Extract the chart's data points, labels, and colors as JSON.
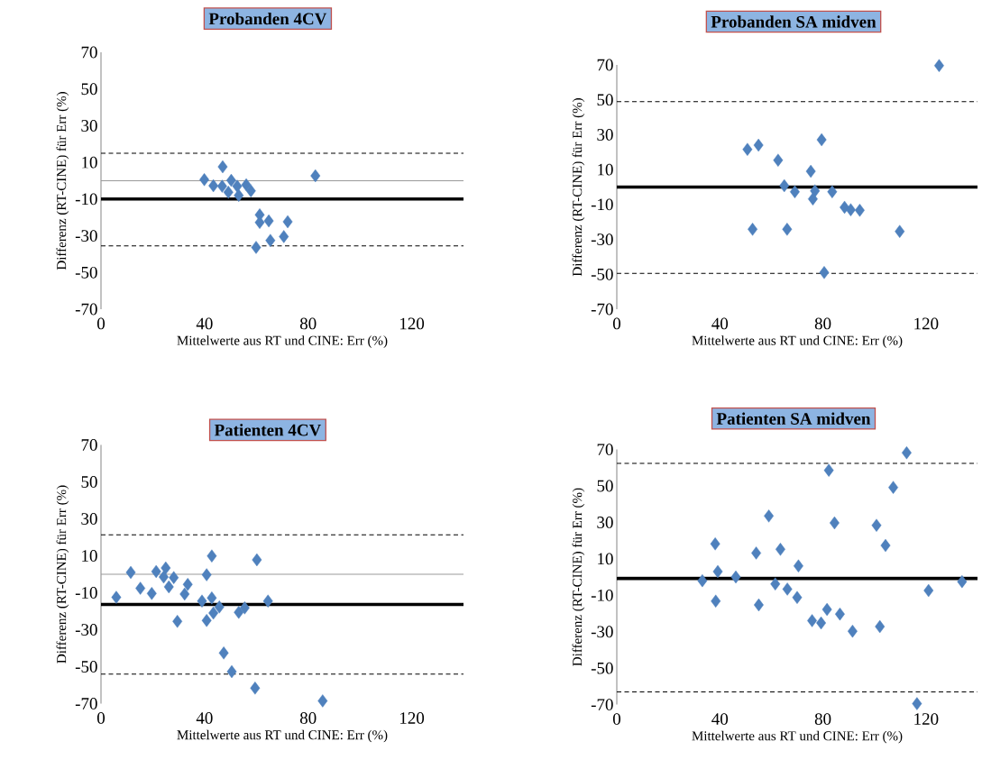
{
  "chart_data": [
    {
      "type": "scatter",
      "title": "Probanden 4CV",
      "xlabel": "Mittelwerte aus RT und CINE: Err (%)",
      "ylabel": "Differenz (RT-CINE) für Err (%)",
      "color": "#4f81bd",
      "marker": "diamond",
      "x": [
        39.9,
        47,
        43.4,
        46.8,
        50.3,
        52.6,
        53.2,
        56.1,
        57.9,
        49.2,
        82.8,
        61.3,
        61.3,
        64.8,
        72.1,
        70.6,
        65.4,
        59.9
      ],
      "values": [
        0.6,
        7.6,
        -2.7,
        -3,
        0.2,
        -3,
        -8,
        -2.2,
        -5.5,
        -6.3,
        2.7,
        -18.6,
        -22.7,
        -21.9,
        -22.3,
        -30.4,
        -32.5,
        -36.3
      ],
      "xlim": [
        0,
        140
      ],
      "ylim": [
        -70,
        70
      ],
      "xticks": [
        0,
        40,
        80,
        120
      ],
      "yticks": [
        -70,
        -50,
        -30,
        -10,
        10,
        30,
        50,
        70
      ],
      "ref_lines": [
        {
          "axis": "y",
          "value": -10,
          "color": "#000000",
          "line_style": "solid"
        },
        {
          "axis": "y",
          "value": 15,
          "color": "#000000",
          "line_style": "dashed"
        },
        {
          "axis": "y",
          "value": -35.5,
          "color": "#000000",
          "line_style": "dashed"
        }
      ]
    },
    {
      "type": "scatter",
      "title": "Probanden SA midven",
      "xlabel": "Mittelwerte aus RT und CINE: Err (%)",
      "ylabel": "Differenz (RT-CINE) für Err (%)",
      "color": "#4f81bd",
      "marker": "diamond",
      "x": [
        125.1,
        50.7,
        55.0,
        62.6,
        79.5,
        75.3,
        65.0,
        69.1,
        76.9,
        76.1,
        83.6,
        88.4,
        90.8,
        94.3,
        52.7,
        66.1,
        109.8,
        80.5
      ],
      "values": [
        69.6,
        21.6,
        24.0,
        15.4,
        27.1,
        9.0,
        0.8,
        -2.7,
        -2.2,
        -6.8,
        -2.7,
        -11.6,
        -13,
        -13.3,
        -24.2,
        -24.2,
        -25.4,
        -49
      ],
      "xlim": [
        0,
        140
      ],
      "ylim": [
        -70,
        70
      ],
      "xticks": [
        0,
        40,
        80,
        120
      ],
      "yticks": [
        -70,
        -50,
        -30,
        -10,
        10,
        30,
        50,
        70
      ],
      "ref_lines": [
        {
          "axis": "y",
          "value": 0,
          "color": "#000000",
          "line_style": "solid"
        },
        {
          "axis": "y",
          "value": 49,
          "color": "#000000",
          "line_style": "dashed"
        },
        {
          "axis": "y",
          "value": -49.5,
          "color": "#000000",
          "line_style": "dashed"
        }
      ]
    },
    {
      "type": "scatter",
      "title": "Patienten 4CV",
      "xlabel": "Mittelwerte aus RT und CINE: Err (%)",
      "ylabel": "Differenz (RT-CINE) für Err (%)",
      "color": "#4f81bd",
      "marker": "diamond",
      "x": [
        5.9,
        11.5,
        15.2,
        19.6,
        21.3,
        25.0,
        24.2,
        28.1,
        26.2,
        33.5,
        32.3,
        29.5,
        42.8,
        40.8,
        39.0,
        42.8,
        45.7,
        43.4,
        40.8,
        53.2,
        55.5,
        60.2,
        64.5,
        47.4,
        50.5,
        59.5,
        85.6
      ],
      "values": [
        -12.5,
        1.0,
        -7.6,
        -10.4,
        1.5,
        3.4,
        -1.5,
        -1.8,
        -6.8,
        -5.5,
        -10.7,
        -25.5,
        9.9,
        -0.3,
        -14.5,
        -12.8,
        -17.7,
        -21.0,
        -25.0,
        -20.6,
        -18.2,
        7.8,
        -14.5,
        -42.6,
        -52.7,
        -61.6,
        -68.5
      ],
      "xlim": [
        0,
        140
      ],
      "ylim": [
        -70,
        70
      ],
      "xticks": [
        0,
        40,
        80,
        120
      ],
      "yticks": [
        -70,
        -50,
        -30,
        -10,
        10,
        30,
        50,
        70
      ],
      "ref_lines": [
        {
          "axis": "y",
          "value": -16.4,
          "color": "#000000",
          "line_style": "solid"
        },
        {
          "axis": "y",
          "value": 21.3,
          "color": "#000000",
          "line_style": "dashed"
        },
        {
          "axis": "y",
          "value": -54,
          "color": "#000000",
          "line_style": "dashed"
        }
      ]
    },
    {
      "type": "scatter",
      "title": "Patienten SA midven",
      "xlabel": "Mittelwerte aus RT und CINE: Err (%)",
      "ylabel": "Differenz (RT-CINE) für Err (%)",
      "color": "#4f81bd",
      "marker": "diamond",
      "x": [
        112.5,
        82.3,
        107.3,
        59.0,
        84.5,
        100.8,
        104.3,
        38.2,
        54.1,
        63.5,
        70.5,
        39.2,
        46.2,
        33.2,
        61.5,
        66.2,
        70.0,
        38.4,
        55.1,
        121.0,
        134.0,
        81.6,
        86.6,
        75.8,
        79.3,
        91.5,
        102.1,
        116.5
      ],
      "values": [
        68.2,
        58.6,
        49.2,
        33.5,
        29.7,
        28.4,
        17.3,
        18.2,
        13.2,
        15.2,
        6.1,
        3.0,
        0,
        -2.0,
        -3.8,
        -6.6,
        -11.2,
        -13.2,
        -15.3,
        -7.4,
        -2.5,
        -17.8,
        -20.3,
        -23.9,
        -25.2,
        -29.7,
        -27.2,
        -69.5
      ],
      "xlim": [
        0,
        140
      ],
      "ylim": [
        -70,
        70
      ],
      "xticks": [
        0,
        40,
        80,
        120
      ],
      "yticks": [
        -70,
        -50,
        -30,
        -10,
        10,
        30,
        50,
        70
      ],
      "ref_lines": [
        {
          "axis": "y",
          "value": -0.8,
          "color": "#000000",
          "line_style": "solid"
        },
        {
          "axis": "y",
          "value": 62.4,
          "color": "#000000",
          "line_style": "dashed"
        },
        {
          "axis": "y",
          "value": -63,
          "color": "#000000",
          "line_style": "dashed"
        }
      ]
    }
  ]
}
